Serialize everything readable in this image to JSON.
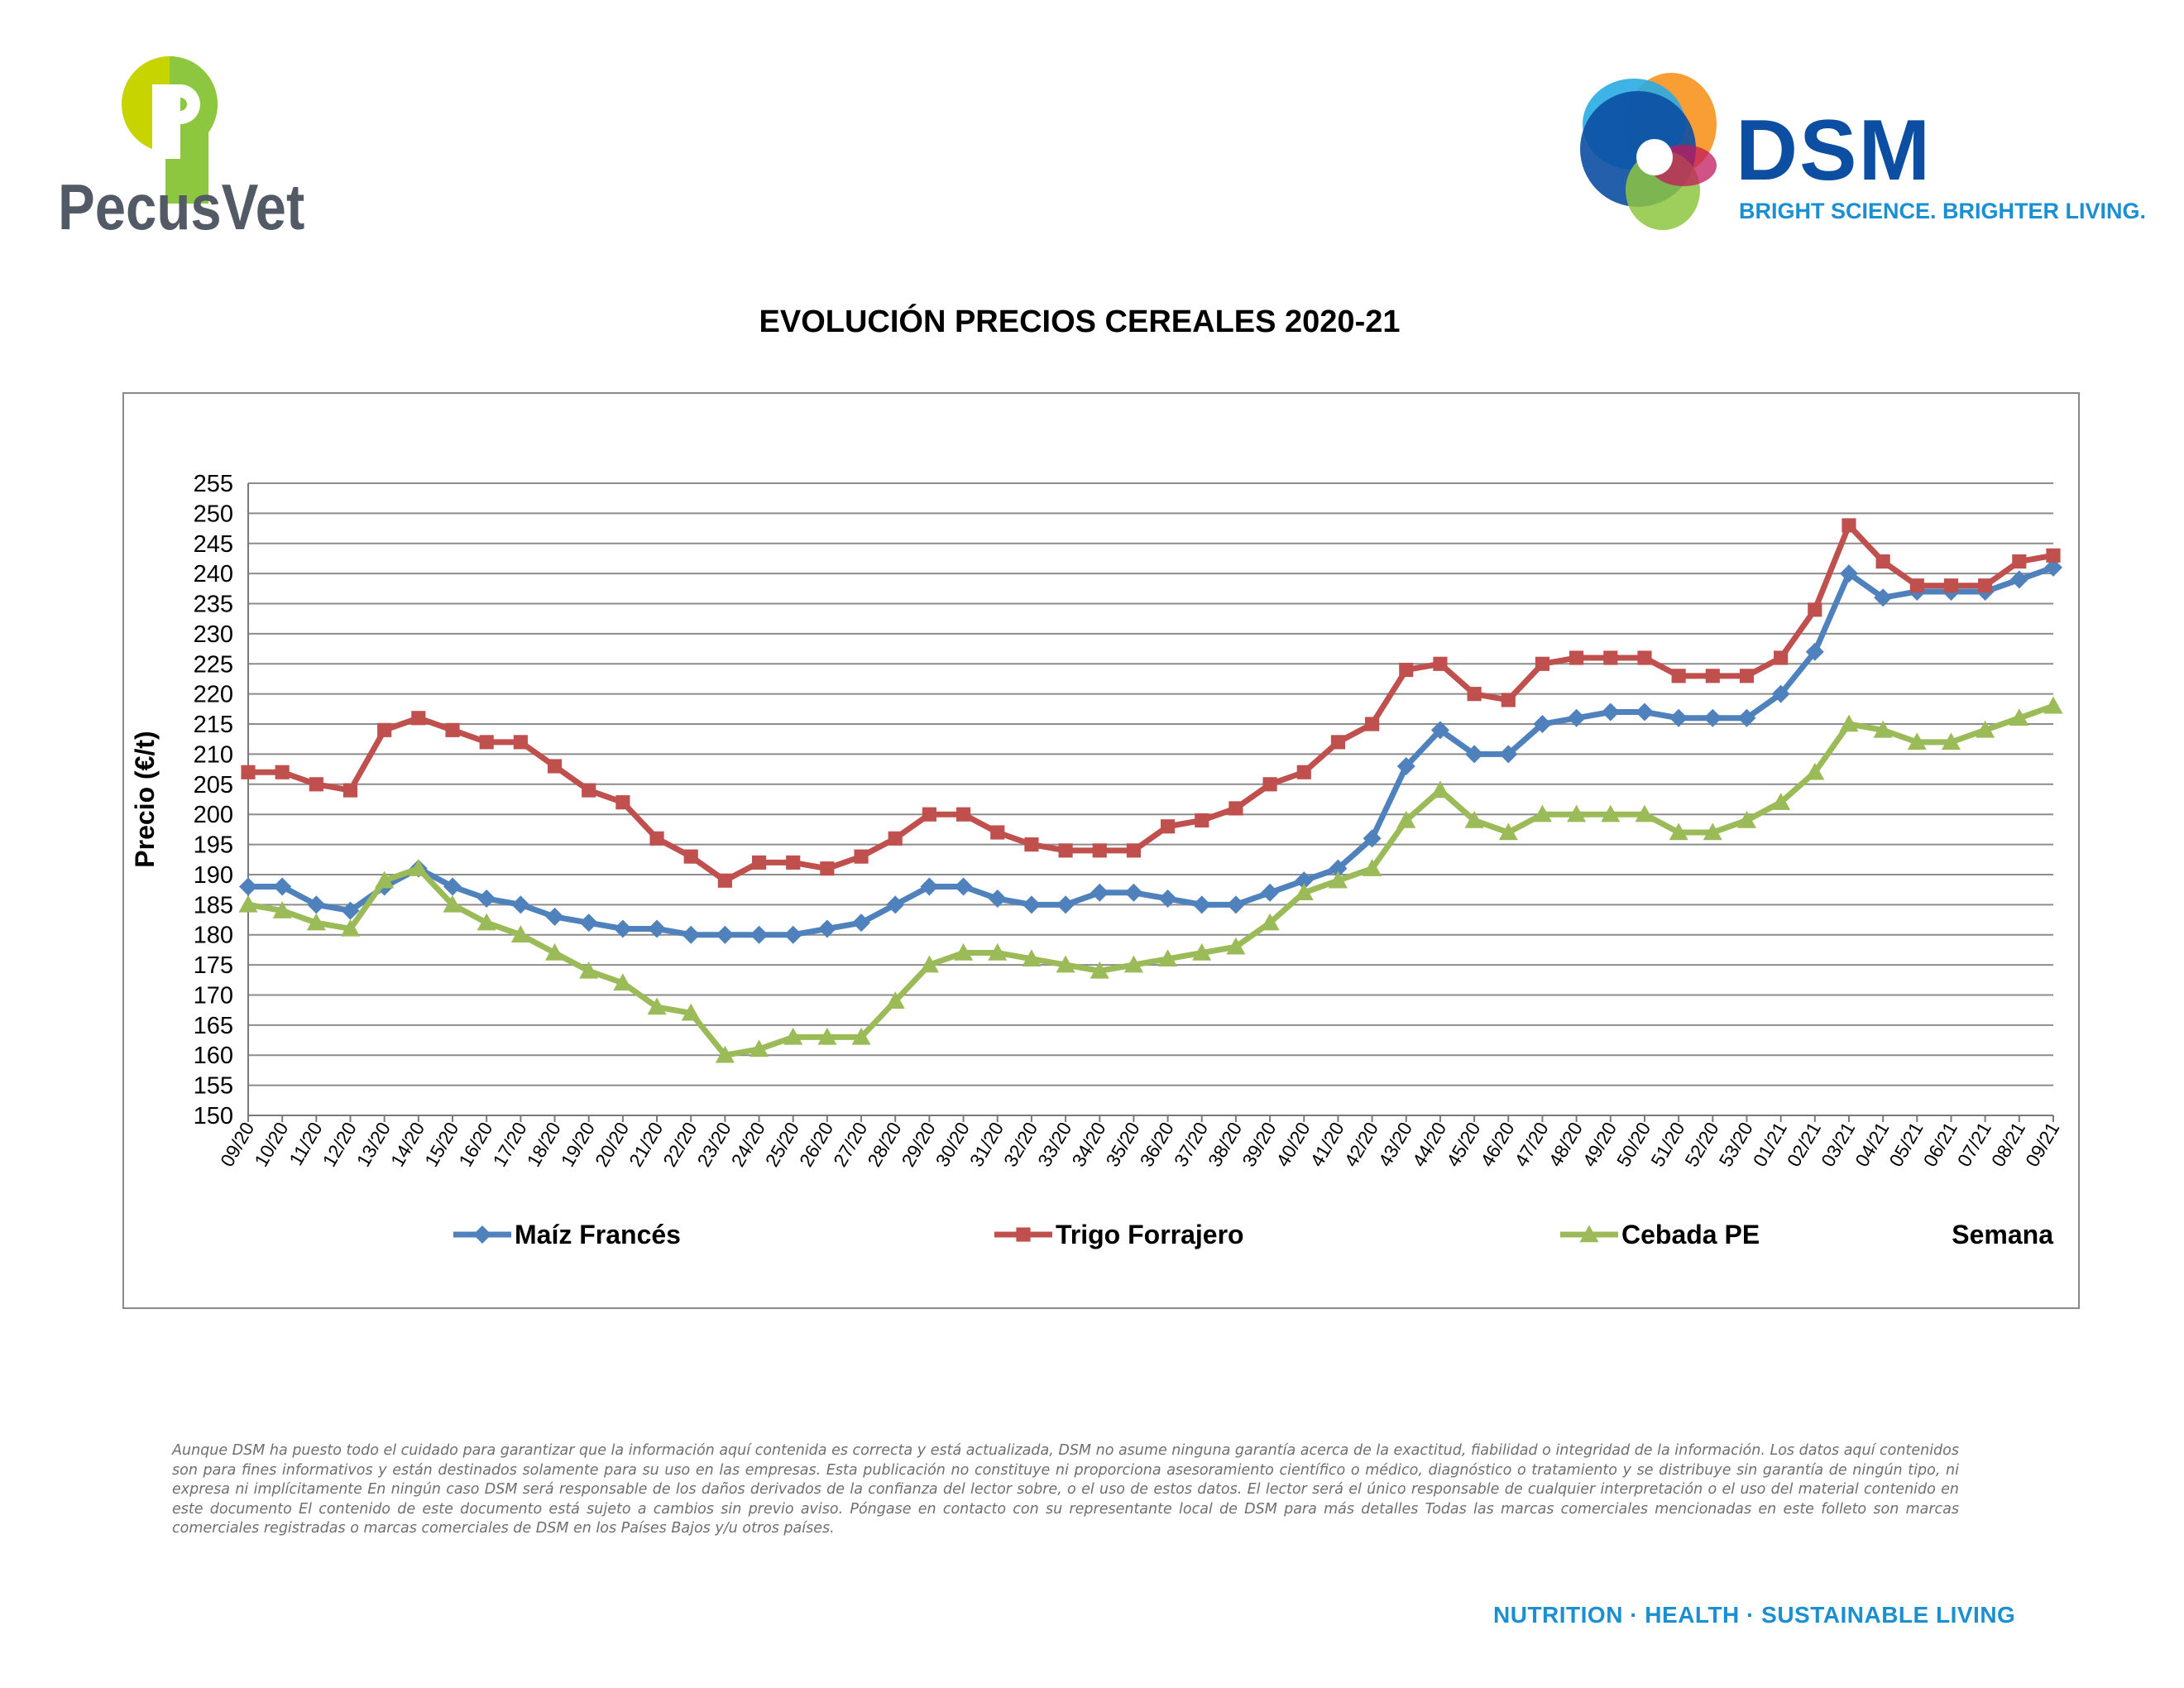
{
  "logos": {
    "pecusvet_text": "PecusVet",
    "dsm_text": "DSM",
    "dsm_tagline": "BRIGHT SCIENCE. BRIGHTER LIVING."
  },
  "chart_data": {
    "type": "line",
    "title": "EVOLUCIÓN PRECIOS CEREALES 2020-21",
    "xlabel": "Semana",
    "ylabel": "Precio (€/t)",
    "ylim": [
      150,
      255
    ],
    "ytick_step": 5,
    "grid": true,
    "legend_position": "bottom",
    "categories": [
      "09/20",
      "10/20",
      "11/20",
      "12/20",
      "13/20",
      "14/20",
      "15/20",
      "16/20",
      "17/20",
      "18/20",
      "19/20",
      "20/20",
      "21/20",
      "22/20",
      "23/20",
      "24/20",
      "25/20",
      "26/20",
      "27/20",
      "28/20",
      "29/20",
      "30/20",
      "31/20",
      "32/20",
      "33/20",
      "34/20",
      "35/20",
      "36/20",
      "37/20",
      "38/20",
      "39/20",
      "40/20",
      "41/20",
      "42/20",
      "43/20",
      "44/20",
      "45/20",
      "46/20",
      "47/20",
      "48/20",
      "49/20",
      "50/20",
      "51/20",
      "52/20",
      "53/20",
      "01/21",
      "02/21",
      "03/21",
      "04/21",
      "05/21",
      "06/21",
      "07/21",
      "08/21",
      "09/21"
    ],
    "series": [
      {
        "name": "Maíz Francés",
        "color": "#4f81bd",
        "marker": "diamond",
        "values": [
          188,
          188,
          185,
          184,
          188,
          191,
          188,
          186,
          185,
          183,
          182,
          181,
          181,
          180,
          180,
          180,
          180,
          181,
          182,
          185,
          188,
          188,
          186,
          185,
          185,
          187,
          187,
          186,
          185,
          185,
          187,
          189,
          191,
          196,
          208,
          214,
          210,
          210,
          215,
          216,
          217,
          217,
          216,
          216,
          216,
          220,
          227,
          240,
          236,
          237,
          237,
          237,
          239,
          241
        ]
      },
      {
        "name": "Trigo Forrajero",
        "color": "#c0504d",
        "marker": "square",
        "values": [
          207,
          207,
          205,
          204,
          214,
          216,
          214,
          212,
          212,
          208,
          204,
          202,
          196,
          193,
          189,
          192,
          192,
          191,
          193,
          196,
          200,
          200,
          197,
          195,
          194,
          194,
          194,
          198,
          199,
          201,
          205,
          207,
          212,
          215,
          224,
          225,
          220,
          219,
          225,
          226,
          226,
          226,
          223,
          223,
          223,
          226,
          234,
          248,
          242,
          238,
          238,
          238,
          242,
          243
        ]
      },
      {
        "name": "Cebada PE",
        "color": "#9bbb59",
        "marker": "triangle",
        "values": [
          185,
          184,
          182,
          181,
          189,
          191,
          185,
          182,
          180,
          177,
          174,
          172,
          168,
          167,
          160,
          161,
          163,
          163,
          163,
          169,
          175,
          177,
          177,
          176,
          175,
          174,
          175,
          176,
          177,
          178,
          182,
          187,
          189,
          191,
          199,
          204,
          199,
          197,
          200,
          200,
          200,
          200,
          197,
          197,
          199,
          202,
          207,
          215,
          214,
          212,
          212,
          214,
          216,
          218
        ]
      }
    ]
  },
  "disclaimer": "Aunque DSM ha puesto todo el cuidado para garantizar que la información aquí contenida es correcta y está actualizada, DSM no asume ninguna garantía acerca de la exactitud, fiabilidad o integridad de la información. Los datos aquí contenidos son para fines informativos y están destinados solamente para su uso en las empresas. Esta publicación no constituye ni proporciona asesoramiento científico o médico, diagnóstico o tratamiento y se distribuye sin garantía de ningún tipo, ni expresa ni implícitamente En ningún caso DSM será responsable de los daños derivados de la confianza del lector sobre, o el uso de estos datos. El lector será el único responsable de cualquier interpretación o el uso del material contenido en este documento El contenido de este documento está sujeto a cambios sin previo aviso. Póngase en contacto con su representante local de DSM para más detalles Todas las marcas comerciales mencionadas en este folleto son marcas comerciales registradas o marcas comerciales de DSM en los Países Bajos y/u otros países.",
  "footer": "NUTRITION · HEALTH · SUSTAINABLE LIVING"
}
